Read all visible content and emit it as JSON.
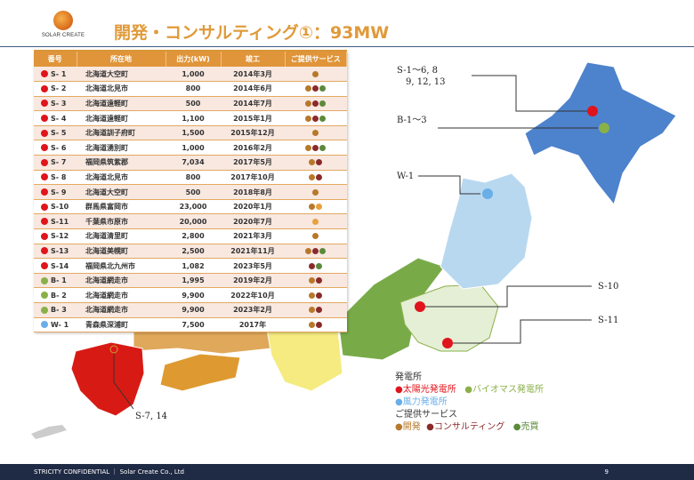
{
  "header": {
    "logo_text": "SOLAR CREATE",
    "title": "開発・コンサルティング①：93MW"
  },
  "colors": {
    "solar": "#e0141c",
    "biomass": "#8ab04a",
    "wind": "#6aaee8",
    "dev": "#b8782a",
    "consult": "#8a2a2a",
    "sale": "#5a8a3a",
    "dev_light": "#e8a040",
    "accent": "#e0953a"
  },
  "table": {
    "headers": [
      "番号",
      "所在地",
      "出力(kW)",
      "竣工",
      "ご提供サービス"
    ],
    "rows": [
      {
        "type": "solar",
        "id": "S- 1",
        "loc": "北海道大空町",
        "kw": "1,000",
        "date": "2014年3月",
        "svc": [
          "dev"
        ]
      },
      {
        "type": "solar",
        "id": "S- 2",
        "loc": "北海道北見市",
        "kw": "800",
        "date": "2014年6月",
        "svc": [
          "dev",
          "consult",
          "sale"
        ]
      },
      {
        "type": "solar",
        "id": "S- 3",
        "loc": "北海道遠軽町",
        "kw": "500",
        "date": "2014年7月",
        "svc": [
          "dev",
          "consult",
          "sale"
        ]
      },
      {
        "type": "solar",
        "id": "S- 4",
        "loc": "北海道遠軽町",
        "kw": "1,100",
        "date": "2015年1月",
        "svc": [
          "dev",
          "consult",
          "sale"
        ]
      },
      {
        "type": "solar",
        "id": "S- 5",
        "loc": "北海道訓子府町",
        "kw": "1,500",
        "date": "2015年12月",
        "svc": [
          "dev"
        ]
      },
      {
        "type": "solar",
        "id": "S- 6",
        "loc": "北海道湧別町",
        "kw": "1,000",
        "date": "2016年2月",
        "svc": [
          "dev",
          "consult",
          "sale"
        ]
      },
      {
        "type": "solar",
        "id": "S- 7",
        "loc": "福岡県筑紫郡",
        "kw": "7,034",
        "date": "2017年5月",
        "svc": [
          "dev",
          "consult"
        ]
      },
      {
        "type": "solar",
        "id": "S- 8",
        "loc": "北海道北見市",
        "kw": "800",
        "date": "2017年10月",
        "svc": [
          "dev",
          "consult"
        ]
      },
      {
        "type": "solar",
        "id": "S- 9",
        "loc": "北海道大空町",
        "kw": "500",
        "date": "2018年8月",
        "svc": [
          "dev"
        ]
      },
      {
        "type": "solar",
        "id": "S-10",
        "loc": "群馬県富岡市",
        "kw": "23,000",
        "date": "2020年1月",
        "svc": [
          "dev",
          "dev_light"
        ]
      },
      {
        "type": "solar",
        "id": "S-11",
        "loc": "千葉県市原市",
        "kw": "20,000",
        "date": "2020年7月",
        "svc": [
          "dev_light"
        ]
      },
      {
        "type": "solar",
        "id": "S-12",
        "loc": "北海道清里町",
        "kw": "2,800",
        "date": "2021年3月",
        "svc": [
          "dev"
        ]
      },
      {
        "type": "solar",
        "id": "S-13",
        "loc": "北海道美幌町",
        "kw": "2,500",
        "date": "2021年11月",
        "svc": [
          "dev",
          "consult",
          "sale"
        ]
      },
      {
        "type": "solar",
        "id": "S-14",
        "loc": "福岡県北九州市",
        "kw": "1,082",
        "date": "2023年5月",
        "svc": [
          "consult",
          "sale"
        ]
      },
      {
        "type": "biomass",
        "id": "B- 1",
        "loc": "北海道網走市",
        "kw": "1,995",
        "date": "2019年2月",
        "svc": [
          "dev",
          "consult"
        ]
      },
      {
        "type": "biomass",
        "id": "B- 2",
        "loc": "北海道網走市",
        "kw": "9,900",
        "date": "2022年10月",
        "svc": [
          "dev",
          "consult"
        ]
      },
      {
        "type": "biomass",
        "id": "B- 3",
        "loc": "北海道網走市",
        "kw": "9,900",
        "date": "2023年2月",
        "svc": [
          "dev",
          "consult"
        ]
      },
      {
        "type": "wind",
        "id": "W- 1",
        "loc": "青森県深浦町",
        "kw": "7,500",
        "date": "2017年",
        "svc": [
          "dev",
          "consult"
        ]
      }
    ]
  },
  "map_labels": {
    "s_hokkaido": "S-1～6, 8",
    "s_hokkaido2": "9, 12, 13",
    "b": "B-1～3",
    "w": "W-1",
    "s10": "S-10",
    "s11": "S-11",
    "s7": "S-7, 14"
  },
  "legend": {
    "plants_title": "発電所",
    "solar": "太陽光発電所",
    "biomass": "バイオマス発電所",
    "wind": "風力発電所",
    "services_title": "ご提供サービス",
    "dev": "開発",
    "consult": "コンサルティング",
    "sale": "売買"
  },
  "footer": {
    "text": "STRICITY CONFIDENTIAL ｜ Solar Create Co., Ltd",
    "page": "9"
  }
}
